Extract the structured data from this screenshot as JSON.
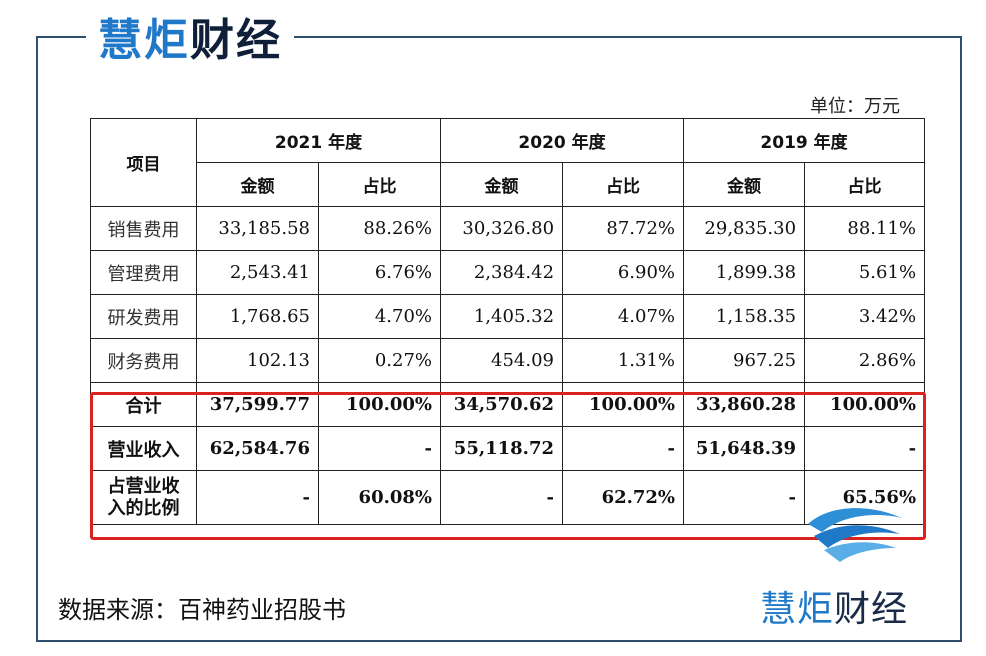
{
  "brand": {
    "part1": "慧炬",
    "part2": "财经",
    "logo_icon": "swirl-logo-icon",
    "colors": {
      "blue": "#1f78c8",
      "navy": "#0f1f3a",
      "highlight": "#d8231e"
    }
  },
  "unit_label": "单位：万元",
  "table": {
    "item_header": "项目",
    "years": [
      "2021 年度",
      "2020 年度",
      "2019 年度"
    ],
    "sub_headers": {
      "amount": "金额",
      "ratio": "占比"
    },
    "rows": [
      {
        "name": "销售费用",
        "cells": [
          "33,185.58",
          "88.26%",
          "30,326.80",
          "87.72%",
          "29,835.30",
          "88.11%"
        ]
      },
      {
        "name": "管理费用",
        "cells": [
          "2,543.41",
          "6.76%",
          "2,384.42",
          "6.90%",
          "1,899.38",
          "5.61%"
        ]
      },
      {
        "name": "研发费用",
        "cells": [
          "1,768.65",
          "4.70%",
          "1,405.32",
          "4.07%",
          "1,158.35",
          "3.42%"
        ]
      },
      {
        "name": "财务费用",
        "cells": [
          "102.13",
          "0.27%",
          "454.09",
          "1.31%",
          "967.25",
          "2.86%"
        ]
      },
      {
        "name": "合计",
        "cells": [
          "37,599.77",
          "100.00%",
          "34,570.62",
          "100.00%",
          "33,860.28",
          "100.00%"
        ]
      },
      {
        "name": "营业收入",
        "cells": [
          "62,584.76",
          "-",
          "55,118.72",
          "-",
          "51,648.39",
          "-"
        ]
      },
      {
        "name_line1": "占营业收",
        "name_line2": "入的比例",
        "cells": [
          "-",
          "60.08%",
          "-",
          "62.72%",
          "-",
          "65.56%"
        ]
      }
    ]
  },
  "source": "数据来源：百神药业招股书"
}
